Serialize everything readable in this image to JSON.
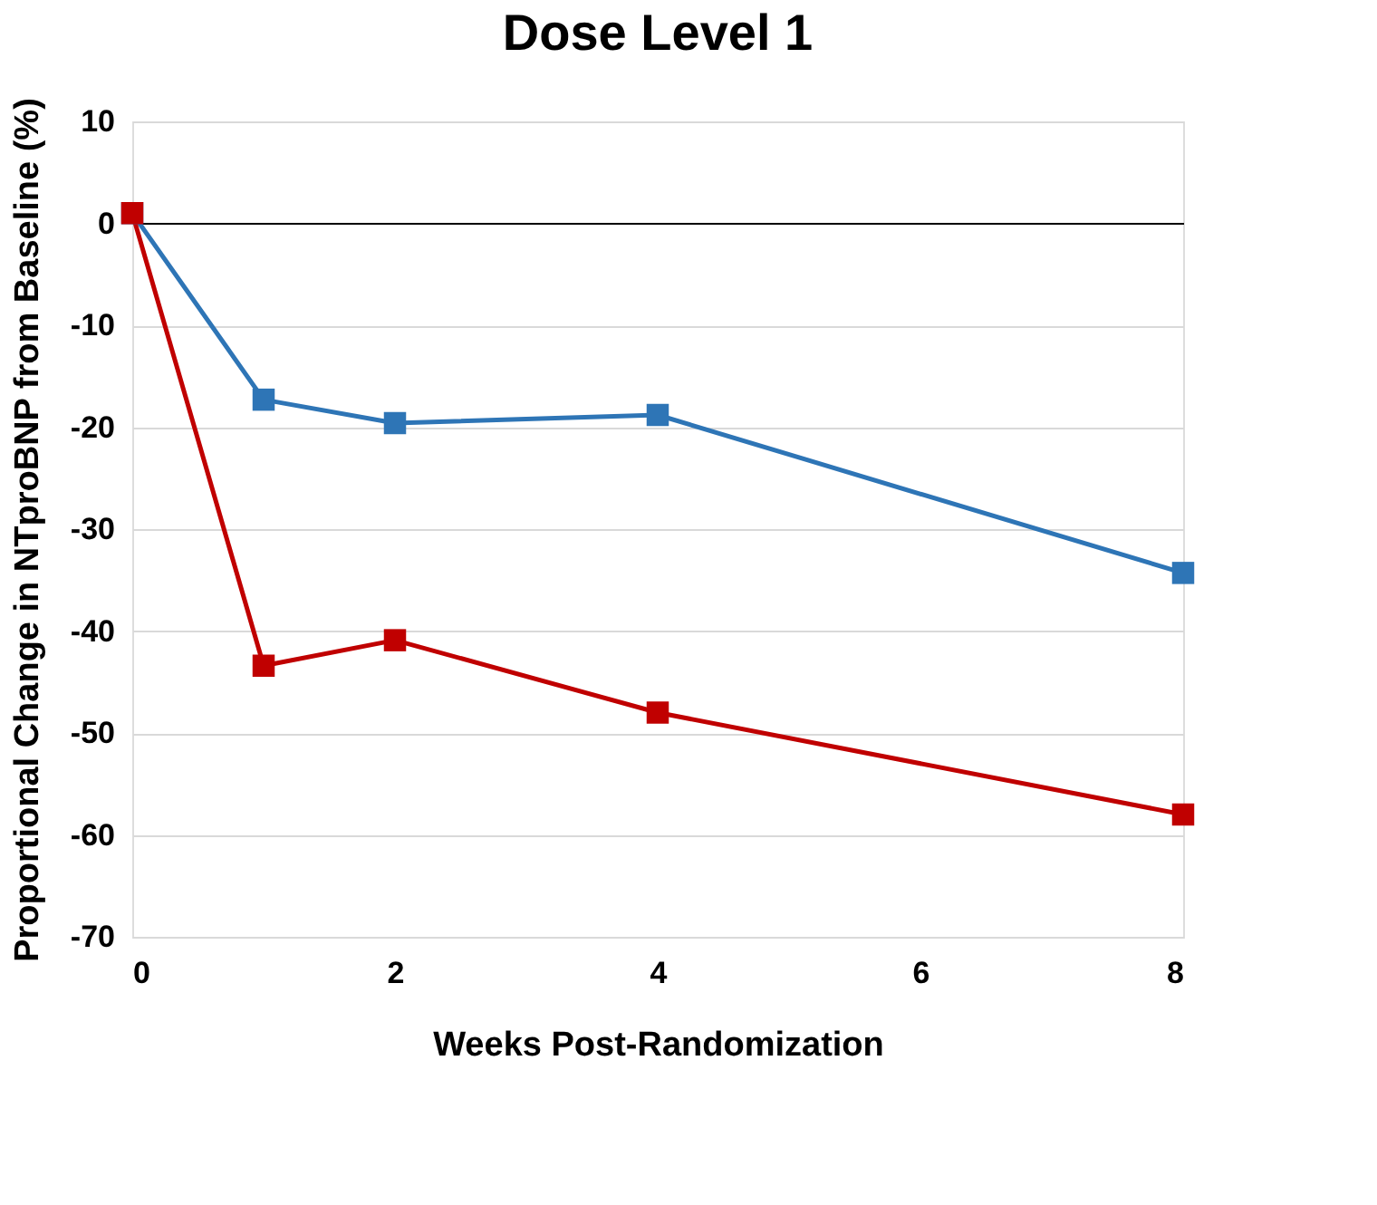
{
  "chart_data": {
    "type": "line",
    "title": "Dose Level 1",
    "xlabel": "Weeks Post-Randomization",
    "ylabel": "Proportional Change in NTproBNP from Baseline (%)",
    "x": [
      0,
      1,
      2,
      4,
      8
    ],
    "series": [
      {
        "color": "#2e75b6",
        "values": [
          1,
          -17.3,
          -19.6,
          -18.8,
          -34.3
        ]
      },
      {
        "color": "#c00000",
        "values": [
          1,
          -43.4,
          -40.9,
          -48,
          -58
        ]
      }
    ],
    "xlim": [
      0,
      8
    ],
    "xticks": [
      0,
      2,
      4,
      6,
      8
    ],
    "ylim": [
      -70,
      10
    ],
    "yticks": [
      10,
      0,
      -10,
      -20,
      -30,
      -40,
      -50,
      -60,
      -70
    ],
    "grid": "y",
    "legend": false,
    "marker": "square",
    "line_style": "solid"
  }
}
